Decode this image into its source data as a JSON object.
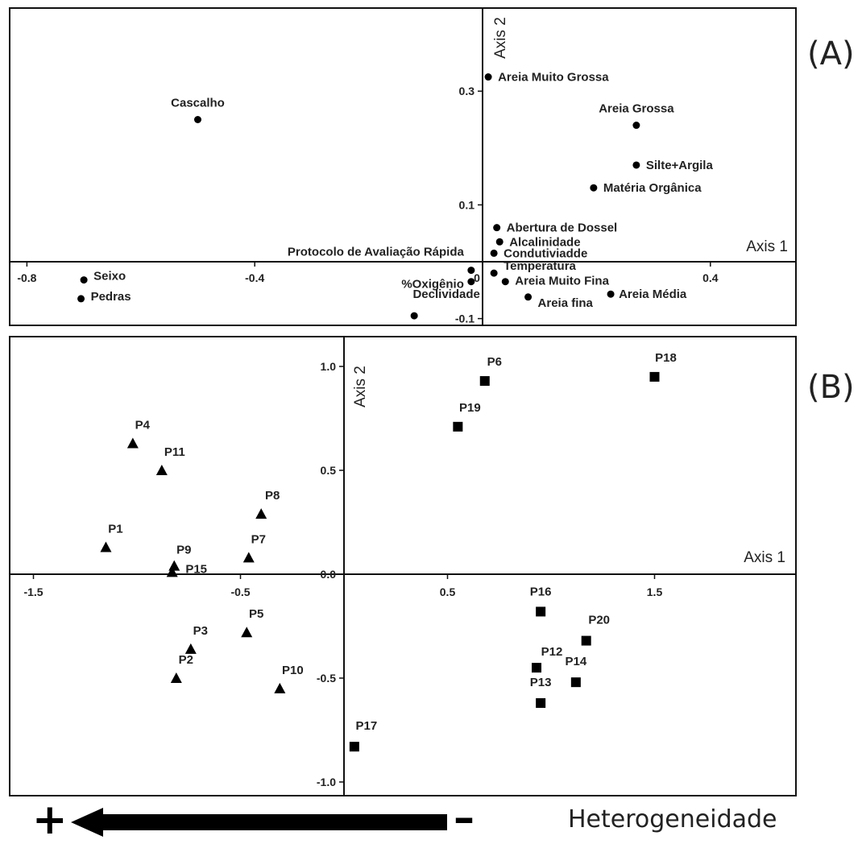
{
  "panels": {
    "a": {
      "letter": "(A)"
    },
    "b": {
      "letter": "(B)"
    }
  },
  "gradient": {
    "plus": "+",
    "minus": "–",
    "label": "Heterogeneidade"
  },
  "chart_data": [
    {
      "type": "scatter",
      "panel": "(A)",
      "xlabel": "Axis 1",
      "ylabel": "Axis 2",
      "xlim": [
        -0.84,
        0.52
      ],
      "ylim": [
        -0.115,
        0.425
      ],
      "xticks": [
        -0.8,
        -0.4,
        0.0,
        0.4
      ],
      "xtick_labels": [
        "-0.8",
        "-0.4",
        "0",
        "0.4"
      ],
      "yticks": [
        0.3,
        0.1,
        -0.1
      ],
      "ytick_labels": [
        "0.3",
        "0.1",
        "-0.1"
      ],
      "marker": "circle",
      "points": [
        {
          "name": "Cascalho",
          "x": -0.5,
          "y": 0.25
        },
        {
          "name": "Areia Muito Grossa",
          "x": 0.01,
          "y": 0.325
        },
        {
          "name": "Areia Grossa",
          "x": 0.27,
          "y": 0.24
        },
        {
          "name": "Silte+Argila",
          "x": 0.27,
          "y": 0.17
        },
        {
          "name": "Matéria Orgânica",
          "x": 0.195,
          "y": 0.13
        },
        {
          "name": "Abertura de Dossel",
          "x": 0.025,
          "y": 0.06
        },
        {
          "name": "Alcalinidade",
          "x": 0.03,
          "y": 0.035
        },
        {
          "name": "Condutiviadde",
          "x": 0.02,
          "y": 0.015
        },
        {
          "name": "Protocolo de Avaliação Rápida",
          "x": -0.02,
          "y": -0.015
        },
        {
          "name": "%Oxigênio",
          "x": -0.02,
          "y": -0.035
        },
        {
          "name": "Temperatura",
          "x": 0.02,
          "y": -0.02
        },
        {
          "name": "Areia Muito Fina",
          "x": 0.04,
          "y": -0.035
        },
        {
          "name": "Areia fina",
          "x": 0.08,
          "y": -0.062
        },
        {
          "name": "Areia Média",
          "x": 0.225,
          "y": -0.057
        },
        {
          "name": "Declividade",
          "x": -0.12,
          "y": -0.095
        },
        {
          "name": "Seixo",
          "x": -0.7,
          "y": -0.032
        },
        {
          "name": "Pedras",
          "x": -0.705,
          "y": -0.065
        }
      ]
    },
    {
      "type": "scatter",
      "panel": "(B)",
      "xlabel": "Axis 1",
      "ylabel": "Axis 2",
      "xlim": [
        -1.6,
        2.15
      ],
      "ylim": [
        -1.05,
        1.14
      ],
      "xticks": [
        -1.5,
        -0.5,
        0.5,
        1.5
      ],
      "xtick_labels": [
        "-1.5",
        "-0.5",
        "0.5",
        "1.5"
      ],
      "yticks": [
        1.0,
        0.5,
        0.0,
        -0.5,
        -1.0
      ],
      "ytick_labels": [
        "1.0",
        "0.5",
        "0.0",
        "-0.5",
        "-1.0"
      ],
      "series": [
        {
          "marker": "triangle",
          "points": [
            {
              "name": "P4",
              "x": -1.02,
              "y": 0.63
            },
            {
              "name": "P11",
              "x": -0.88,
              "y": 0.5
            },
            {
              "name": "P8",
              "x": -0.4,
              "y": 0.29
            },
            {
              "name": "P1",
              "x": -1.15,
              "y": 0.13
            },
            {
              "name": "P7",
              "x": -0.46,
              "y": 0.08
            },
            {
              "name": "P9",
              "x": -0.82,
              "y": 0.04
            },
            {
              "name": "P15",
              "x": -0.83,
              "y": 0.01
            },
            {
              "name": "P3",
              "x": -0.74,
              "y": -0.36
            },
            {
              "name": "P5",
              "x": -0.47,
              "y": -0.28
            },
            {
              "name": "P2",
              "x": -0.81,
              "y": -0.5
            },
            {
              "name": "P10",
              "x": -0.31,
              "y": -0.55
            }
          ]
        },
        {
          "marker": "square",
          "points": [
            {
              "name": "P6",
              "x": 0.68,
              "y": 0.93
            },
            {
              "name": "P18",
              "x": 1.5,
              "y": 0.95
            },
            {
              "name": "P19",
              "x": 0.55,
              "y": 0.71
            },
            {
              "name": "P16",
              "x": 0.95,
              "y": -0.18
            },
            {
              "name": "P20",
              "x": 1.17,
              "y": -0.32
            },
            {
              "name": "P12",
              "x": 0.93,
              "y": -0.45
            },
            {
              "name": "P14",
              "x": 1.12,
              "y": -0.52
            },
            {
              "name": "P13",
              "x": 0.95,
              "y": -0.62
            },
            {
              "name": "P17",
              "x": 0.05,
              "y": -0.83
            }
          ]
        }
      ]
    }
  ]
}
